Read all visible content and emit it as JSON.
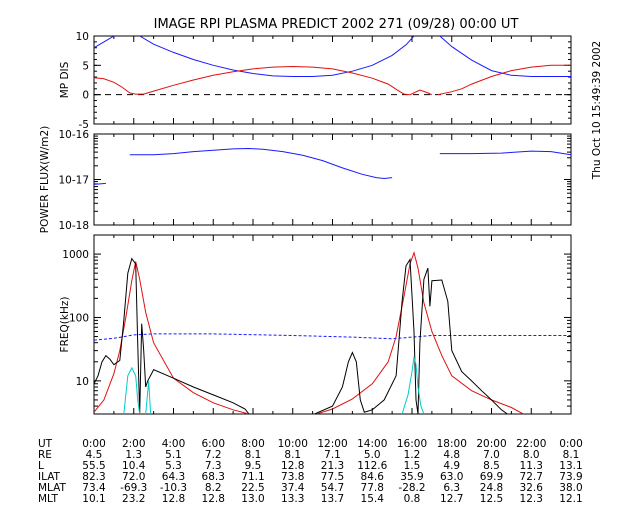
{
  "title": "IMAGE   RPI PLASMA PREDICT 2002 271 (09/28) 00:00 UT",
  "timestamp": "Thu Oct 10 15:49:39 2002",
  "colors": {
    "red": "#e01010",
    "blue": "#1a1aff",
    "cyan": "#00cccc",
    "black": "#000000"
  },
  "chart_data": [
    {
      "type": "line",
      "ylabel": "MP DIS",
      "xlim": [
        0,
        24
      ],
      "ylim": [
        -5,
        10
      ],
      "ytick_labels": [
        "10",
        "5",
        "0",
        "-5"
      ],
      "ytick_values": [
        10,
        5,
        0,
        -5
      ],
      "reference_line": {
        "y": 0,
        "style": "dashed"
      },
      "series": [
        {
          "color": "blue",
          "segments": [
            [
              [
                0,
                8
              ],
              [
                0.5,
                9
              ],
              [
                1,
                10
              ]
            ],
            [
              [
                2.3,
                10
              ],
              [
                3,
                8.6
              ],
              [
                4,
                7.2
              ],
              [
                5,
                6
              ],
              [
                6,
                5
              ],
              [
                7,
                4.2
              ],
              [
                8,
                3.6
              ],
              [
                9,
                3.2
              ],
              [
                10,
                3.1
              ],
              [
                11,
                3.1
              ],
              [
                12,
                3.3
              ],
              [
                13,
                4
              ],
              [
                14,
                5
              ],
              [
                15,
                6.7
              ],
              [
                15.7,
                8.5
              ],
              [
                16.1,
                10
              ]
            ],
            [
              [
                17.4,
                10
              ],
              [
                18,
                8.2
              ],
              [
                19,
                5.9
              ],
              [
                20,
                4.1
              ],
              [
                21,
                3.3
              ],
              [
                22,
                3.1
              ],
              [
                24,
                3.1
              ]
            ]
          ]
        },
        {
          "color": "red",
          "segments": [
            [
              [
                0,
                2.9
              ],
              [
                0.5,
                2.7
              ],
              [
                1,
                2.1
              ],
              [
                1.4,
                1.3
              ],
              [
                1.8,
                0.3
              ],
              [
                2.1,
                0.1
              ],
              [
                2.5,
                0.1
              ],
              [
                3,
                0.6
              ],
              [
                4,
                1.6
              ],
              [
                5,
                2.5
              ],
              [
                6,
                3.3
              ],
              [
                7,
                3.9
              ],
              [
                8,
                4.4
              ],
              [
                9,
                4.7
              ],
              [
                10,
                4.8
              ],
              [
                11,
                4.7
              ],
              [
                12,
                4.4
              ],
              [
                13,
                3.7
              ],
              [
                14,
                2.8
              ],
              [
                14.8,
                1.8
              ],
              [
                15.3,
                0.7
              ],
              [
                15.6,
                0.1
              ],
              [
                15.9,
                0
              ],
              [
                16.4,
                0.8
              ],
              [
                16.8,
                0.3
              ],
              [
                17,
                0
              ]
            ],
            [
              [
                17.3,
                0
              ],
              [
                18,
                0.5
              ],
              [
                18.5,
                1
              ],
              [
                19,
                1.8
              ],
              [
                20,
                3.1
              ],
              [
                21,
                4.1
              ],
              [
                22,
                4.7
              ],
              [
                23,
                5
              ],
              [
                24,
                5
              ]
            ]
          ]
        }
      ]
    },
    {
      "type": "line",
      "ylabel": "POWER FLUX(W/m2)",
      "scale": "log",
      "xlim": [
        0,
        24
      ],
      "ylim": [
        1e-18,
        1e-16
      ],
      "ytick_labels": [
        "10-16",
        "10-17",
        "10-18"
      ],
      "ytick_values": [
        1e-16,
        1e-17,
        1e-18
      ],
      "series": [
        {
          "color": "blue",
          "segments": [
            [
              [
                0,
                7.8e-18
              ],
              [
                0.3,
                8e-18
              ],
              [
                0.6,
                8.2e-18
              ]
            ],
            [
              [
                1.8,
                3.5e-17
              ],
              [
                3,
                3.5e-17
              ],
              [
                4,
                3.7e-17
              ],
              [
                5,
                4.1e-17
              ],
              [
                6,
                4.4e-17
              ],
              [
                7,
                4.7e-17
              ],
              [
                7.8,
                4.8e-17
              ],
              [
                8.5,
                4.6e-17
              ],
              [
                9.5,
                4.1e-17
              ],
              [
                10.5,
                3.4e-17
              ],
              [
                11.5,
                2.6e-17
              ],
              [
                12.5,
                1.8e-17
              ],
              [
                13.5,
                1.3e-17
              ],
              [
                14.2,
                1.1e-17
              ],
              [
                14.6,
                1.05e-17
              ],
              [
                15,
                1.1e-17
              ]
            ],
            [
              [
                17.4,
                3.7e-17
              ],
              [
                19,
                3.7e-17
              ],
              [
                20.5,
                3.8e-17
              ],
              [
                22,
                4.2e-17
              ],
              [
                23,
                4.1e-17
              ],
              [
                24,
                3.5e-17
              ]
            ]
          ]
        }
      ]
    },
    {
      "type": "line",
      "ylabel": "FREQ(kHz)",
      "scale": "log",
      "xlim": [
        0,
        24
      ],
      "ylim": [
        3,
        2000
      ],
      "ytick_labels": [
        "1000",
        "100",
        "10"
      ],
      "ytick_values": [
        1000,
        100,
        10
      ],
      "series": [
        {
          "color": "blue",
          "dashed": true,
          "segments": [
            [
              [
                0,
                44
              ],
              [
                1,
                47
              ],
              [
                2,
                53
              ],
              [
                3,
                55
              ],
              [
                6,
                55
              ],
              [
                10,
                52
              ],
              [
                13,
                49
              ],
              [
                15,
                46
              ],
              [
                16,
                49
              ],
              [
                17,
                52
              ],
              [
                20,
                52
              ],
              [
                24,
                52
              ]
            ]
          ]
        },
        {
          "color": "red",
          "segments": [
            [
              [
                0,
                3.2
              ],
              [
                0.5,
                5
              ],
              [
                1,
                13
              ],
              [
                1.3,
                30
              ],
              [
                1.6,
                100
              ],
              [
                1.9,
                380
              ],
              [
                2.1,
                760
              ],
              [
                2.3,
                400
              ],
              [
                2.6,
                120
              ],
              [
                3,
                40
              ],
              [
                4,
                11
              ],
              [
                5,
                6.5
              ],
              [
                6,
                4.5
              ],
              [
                7,
                3.5
              ],
              [
                7.8,
                3
              ]
            ],
            [
              [
                11.2,
                3
              ],
              [
                12,
                3.6
              ],
              [
                13,
                5.2
              ],
              [
                14,
                9
              ],
              [
                14.8,
                20
              ],
              [
                15.2,
                50
              ],
              [
                15.6,
                220
              ],
              [
                15.9,
                700
              ],
              [
                16.1,
                1050
              ],
              [
                16.3,
                600
              ],
              [
                16.6,
                170
              ],
              [
                17,
                60
              ],
              [
                17.5,
                25
              ],
              [
                18,
                12
              ],
              [
                19,
                7
              ],
              [
                20,
                5
              ],
              [
                21,
                3.8
              ],
              [
                21.6,
                3
              ]
            ]
          ]
        },
        {
          "color": "black",
          "segments": [
            [
              [
                0,
                9
              ],
              [
                0.2,
                12
              ],
              [
                0.4,
                20
              ],
              [
                0.6,
                25
              ],
              [
                0.8,
                22
              ],
              [
                1,
                18
              ],
              [
                1.3,
                21
              ],
              [
                1.5,
                90
              ],
              [
                1.7,
                500
              ],
              [
                1.9,
                850
              ],
              [
                2.1,
                700
              ],
              [
                2.2,
                40
              ],
              [
                2.3,
                3
              ],
              [
                2.4,
                80
              ],
              [
                2.5,
                30
              ],
              [
                2.6,
                8
              ],
              [
                2.7,
                10
              ],
              [
                2.9,
                13
              ],
              [
                3,
                15
              ],
              [
                4,
                11
              ],
              [
                5,
                8
              ],
              [
                6,
                6
              ],
              [
                7,
                4.5
              ],
              [
                7.6,
                3.6
              ],
              [
                7.8,
                3
              ]
            ],
            [
              [
                11.1,
                3
              ],
              [
                12,
                4
              ],
              [
                12.5,
                8
              ],
              [
                12.8,
                20
              ],
              [
                13,
                28
              ],
              [
                13.2,
                20
              ],
              [
                13.4,
                5
              ],
              [
                13.6,
                3.2
              ],
              [
                14,
                3.5
              ],
              [
                14.6,
                5
              ],
              [
                15.2,
                12
              ],
              [
                15.5,
                180
              ],
              [
                15.7,
                650
              ],
              [
                15.9,
                820
              ],
              [
                16.1,
                60
              ],
              [
                16.2,
                5
              ],
              [
                16.3,
                3
              ],
              [
                16.4,
                40
              ],
              [
                16.6,
                400
              ],
              [
                16.8,
                600
              ],
              [
                16.9,
                150
              ],
              [
                17,
                380
              ],
              [
                17.5,
                390
              ],
              [
                17.8,
                180
              ],
              [
                18,
                30
              ],
              [
                18.5,
                14
              ],
              [
                19,
                10
              ],
              [
                19.5,
                7
              ],
              [
                20,
                5
              ],
              [
                20.5,
                3.5
              ],
              [
                20.8,
                3
              ]
            ]
          ]
        },
        {
          "color": "cyan",
          "segments": [
            [
              [
                1.5,
                3
              ],
              [
                1.7,
                12
              ],
              [
                1.9,
                16
              ],
              [
                2.1,
                12
              ],
              [
                2.2,
                5
              ],
              [
                2.3,
                3
              ]
            ],
            [
              [
                2.6,
                3
              ],
              [
                2.75,
                10
              ],
              [
                2.85,
                3
              ]
            ],
            [
              [
                15.5,
                3
              ],
              [
                15.8,
                6
              ],
              [
                16.0,
                14
              ],
              [
                16.1,
                24
              ],
              [
                16.2,
                18
              ],
              [
                16.3,
                8
              ],
              [
                16.45,
                4
              ],
              [
                16.6,
                3
              ]
            ]
          ]
        }
      ]
    }
  ],
  "table": {
    "rows": [
      {
        "label": "UT",
        "values": [
          "0:00",
          "2:00",
          "4:00",
          "6:00",
          "8:00",
          "10:00",
          "12:00",
          "14:00",
          "16:00",
          "18:00",
          "20:00",
          "22:00",
          "0:00"
        ]
      },
      {
        "label": "RE",
        "values": [
          "4.5",
          "1.3",
          "5.1",
          "7.2",
          "8.1",
          "8.1",
          "7.1",
          "5.0",
          "1.2",
          "4.8",
          "7.0",
          "8.0",
          "8.1"
        ]
      },
      {
        "label": "L",
        "values": [
          "55.5",
          "10.4",
          "5.3",
          "7.3",
          "9.5",
          "12.8",
          "21.3",
          "112.6",
          "1.5",
          "4.9",
          "8.5",
          "11.3",
          "13.1"
        ]
      },
      {
        "label": "ILAT",
        "values": [
          "82.3",
          "72.0",
          "64.3",
          "68.3",
          "71.1",
          "73.8",
          "77.5",
          "84.6",
          "35.9",
          "63.0",
          "69.9",
          "72.7",
          "73.9"
        ]
      },
      {
        "label": "MLAT",
        "values": [
          "73.4",
          "-69.3",
          "-10.3",
          "8.2",
          "22.5",
          "37.4",
          "54.7",
          "77.8",
          "-28.2",
          "6.3",
          "24.8",
          "32.6",
          "38.0"
        ]
      },
      {
        "label": "MLT",
        "values": [
          "10.1",
          "23.2",
          "12.8",
          "12.8",
          "13.0",
          "13.3",
          "13.7",
          "15.4",
          "0.8",
          "12.7",
          "12.5",
          "12.3",
          "12.1"
        ]
      }
    ]
  }
}
